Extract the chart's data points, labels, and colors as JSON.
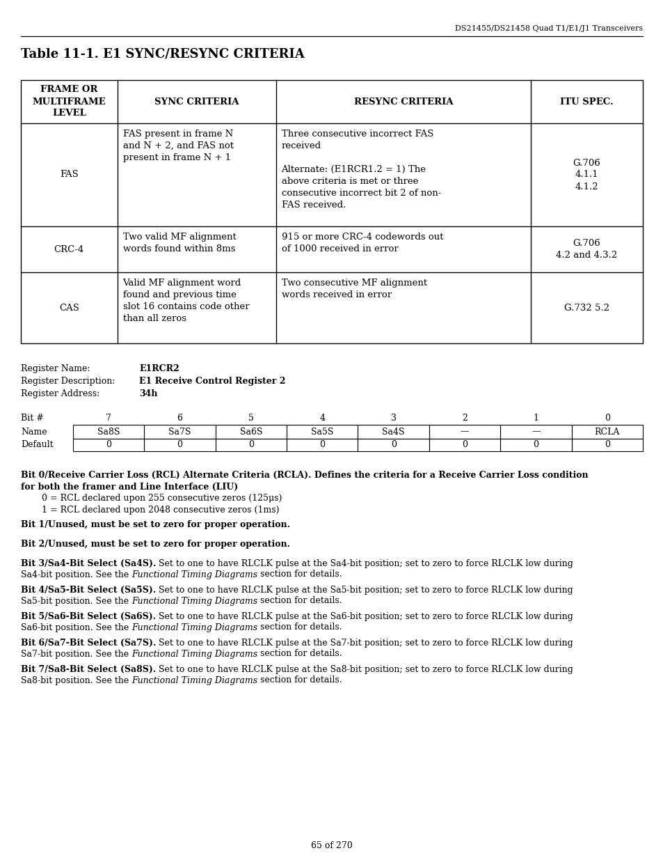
{
  "header_right": "DS21455/DS21458 Quad T1/E1/J1 Transceivers",
  "title": "Table 11-1. E1 SYNC/RESYNC CRITERIA",
  "col_headers": [
    "FRAME OR\nMULTIFRAME\nLEVEL",
    "SYNC CRITERIA",
    "RESYNC CRITERIA",
    "ITU SPEC."
  ],
  "rows": [
    [
      "FAS",
      "FAS present in frame N\nand N + 2, and FAS not\npresent in frame N + 1",
      "Three consecutive incorrect FAS\nreceived\n\nAlternate: (E1RCR1.2 = 1) The\nabove criteria is met or three\nconsecutive incorrect bit 2 of non-\nFAS received.",
      "G.706\n4.1.1\n4.1.2"
    ],
    [
      "CRC-4",
      "Two valid MF alignment\nwords found within 8ms",
      "915 or more CRC-4 codewords out\nof 1000 received in error",
      "G.706\n4.2 and 4.3.2"
    ],
    [
      "CAS",
      "Valid MF alignment word\nfound and previous time\nslot 16 contains code other\nthan all zeros",
      "Two consecutive MF alignment\nwords received in error",
      "G.732 5.2"
    ]
  ],
  "reg_name_label": "Register Name:",
  "reg_name_value": "E1RCR2",
  "reg_desc_label": "Register Description:",
  "reg_desc_value": "E1 Receive Control Register 2",
  "reg_addr_label": "Register Address:",
  "reg_addr_value": "34h",
  "bit_numbers": [
    "7",
    "6",
    "5",
    "4",
    "3",
    "2",
    "1",
    "0"
  ],
  "bit_names": [
    "Sa8S",
    "Sa7S",
    "Sa6S",
    "Sa5S",
    "Sa4S",
    "—",
    "—",
    "RCLA"
  ],
  "bit_defaults": [
    "0",
    "0",
    "0",
    "0",
    "0",
    "0",
    "0",
    "0"
  ],
  "desc0_bold": "Bit 0/Receive Carrier Loss (RCL) Alternate Criteria (RCLA). Defines the criteria for a Receive Carrier Loss condition\nfor both the framer and Line Interface (LIU)",
  "desc0_normal": "0 = RCL declared upon 255 consecutive zeros (125μs)\n1 = RCL declared upon 2048 consecutive zeros (1ms)",
  "desc1_bold": "Bit 1/Unused, must be set to zero for proper operation.",
  "desc2_bold": "Bit 2/Unused, must be set to zero for proper operation.",
  "bit_entries": [
    [
      "Bit 3/Sa4-Bit Select (Sa4S).",
      " Set to one to have RLCLK pulse at the Sa4-bit position; set to zero to force RLCLK low during\nSa4-bit position. See the ",
      "Functional Timing Diagrams",
      " section for details."
    ],
    [
      "Bit 4/Sa5-Bit Select (Sa5S).",
      " Set to one to have RLCLK pulse at the Sa5-bit position; set to zero to force RLCLK low during\nSa5-bit position. See the ",
      "Functional Timing Diagrams",
      " section for details."
    ],
    [
      "Bit 5/Sa6-Bit Select (Sa6S).",
      " Set to one to have RLCLK pulse at the Sa6-bit position; set to zero to force RLCLK low during\nSa6-bit position. See the ",
      "Functional Timing Diagrams",
      " section for details."
    ],
    [
      "Bit 6/Sa7-Bit Select (Sa7S).",
      " Set to one to have RLCLK pulse at the Sa7-bit position; set to zero to force RLCLK low during\nSa7-bit position. See the ",
      "Functional Timing Diagrams",
      " section for details."
    ],
    [
      "Bit 7/Sa8-Bit Select (Sa8S).",
      " Set to one to have RLCLK pulse at the Sa8-bit position; set to zero to force RLCLK low during\nSa8-bit position. See the ",
      "Functional Timing Diagrams",
      " section for details."
    ]
  ],
  "footer": "65 of 270"
}
